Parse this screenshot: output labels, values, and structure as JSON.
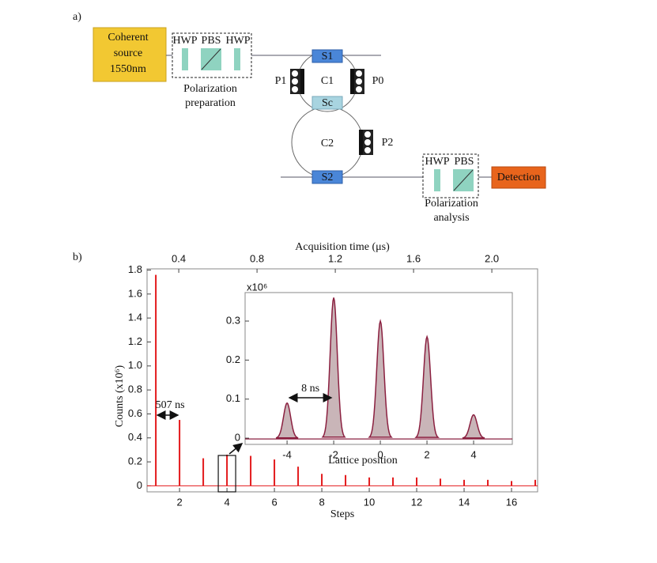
{
  "diagram": {
    "panel_label": "a)",
    "source": [
      "Coherent",
      "source",
      "1550nm"
    ],
    "preparation": {
      "components": [
        "HWP",
        "PBS",
        "HWP"
      ],
      "caption": [
        "Polarization",
        "preparation"
      ]
    },
    "couplers": [
      "S1",
      "Sc",
      "S2"
    ],
    "rings": [
      "C1",
      "C2"
    ],
    "controllers": [
      "P1",
      "P0",
      "P2"
    ],
    "analysis": {
      "components": [
        "HWP",
        "PBS"
      ],
      "caption": [
        "Polarization",
        "analysis"
      ]
    },
    "detector": "Detection"
  },
  "chart_data": [
    {
      "type": "bar",
      "panel_label": "b)",
      "xlabel": "Steps",
      "ylabel": "Counts (x10⁶)",
      "x2label": "Acquisition time (μs)",
      "x": [
        1,
        2,
        3,
        4,
        5,
        6,
        7,
        8,
        9,
        10,
        11,
        12,
        13,
        14,
        15,
        16,
        17
      ],
      "values": [
        1.76,
        0.55,
        0.23,
        0.26,
        0.25,
        0.22,
        0.16,
        0.1,
        0.09,
        0.07,
        0.07,
        0.07,
        0.06,
        0.05,
        0.05,
        0.04,
        0.05
      ],
      "color": "#e31a1c",
      "xlim": [
        0.63,
        17.1
      ],
      "xticks": [
        2,
        4,
        6,
        8,
        10,
        12,
        14,
        16
      ],
      "ylim": [
        -0.05,
        1.81
      ],
      "yticks": [
        0,
        0.2,
        0.4,
        0.6,
        0.8,
        {
          "value": 1.0,
          "label": "1.0"
        },
        1.2,
        1.4,
        1.6,
        1.8
      ],
      "x2lim": [
        0.238,
        2.234
      ],
      "x2ticks": [
        0.4,
        0.8,
        1.2,
        1.6,
        {
          "value": 2.0,
          "label": "2.0"
        }
      ],
      "annotations": [
        "507 ns"
      ]
    },
    {
      "type": "area",
      "xlabel": "Lattice position",
      "ylabel": "x10⁶",
      "x": [
        -4,
        -2,
        0,
        2,
        4
      ],
      "values": [
        0.09,
        0.36,
        0.3,
        0.26,
        0.06
      ],
      "color": "#8b2040",
      "fill_color": "#c9b5b8",
      "xlim": [
        -5.8,
        5.66
      ],
      "xticks": [
        -4,
        -2,
        0,
        2,
        4
      ],
      "ylim": [
        -0.016,
        0.373
      ],
      "yticks": [
        0,
        0.1,
        0.2,
        0.3
      ],
      "annotations": [
        "8 ns"
      ]
    }
  ]
}
